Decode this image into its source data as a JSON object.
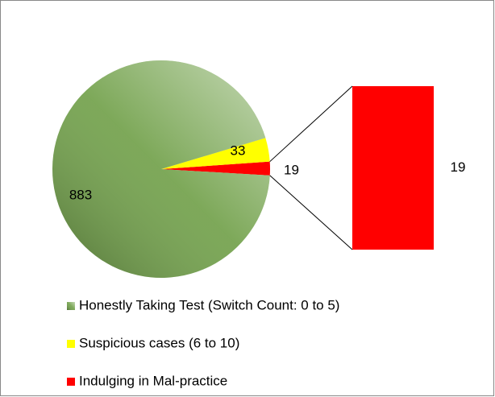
{
  "chart_data": {
    "type": "pie-of-bar",
    "categories": [
      "Honestly Taking Test (Switch Count: 0 to 5)",
      "Suspicious cases (6 to 10)",
      "Indulging in Mal-practice"
    ],
    "values": [
      883,
      33,
      19
    ],
    "colors": [
      "#6f9f47",
      "#ffff00",
      "#ff0000"
    ],
    "bar_values": [
      19
    ],
    "legend": "bottom"
  }
}
